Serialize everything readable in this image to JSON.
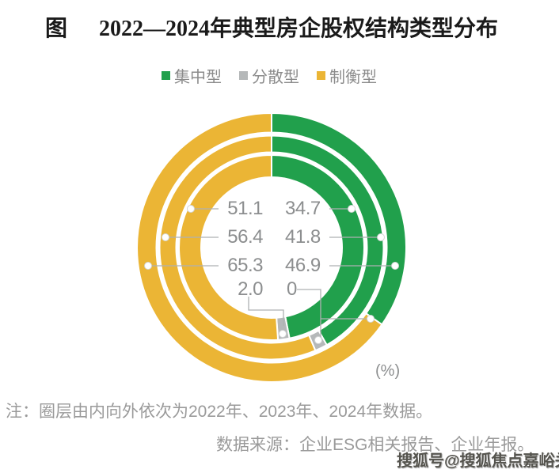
{
  "header": {
    "title_prefix": "图",
    "title": "2022—2024年典型房企股权结构类型分布"
  },
  "chart_data": {
    "type": "pie",
    "variant": "concentric-donut-3-rings",
    "unit": "(%)",
    "legend": [
      {
        "key": "green",
        "label": "集中型"
      },
      {
        "key": "gray",
        "label": "分散型"
      },
      {
        "key": "yellow",
        "label": "制衡型"
      }
    ],
    "colors": {
      "green": "#21A04C",
      "gray": "#B5B8B9",
      "yellow": "#EBB535"
    },
    "rings": [
      {
        "year": "2022",
        "position": "inner",
        "green": "46.9",
        "gray": "2.0",
        "yellow": "51.1"
      },
      {
        "year": "2023",
        "position": "middle",
        "green": "41.8",
        "gray": "1.8",
        "yellow": "56.4"
      },
      {
        "year": "2024",
        "position": "outer",
        "green": "34.7",
        "gray": "0",
        "yellow": "65.3"
      }
    ]
  },
  "notes": {
    "note": "注：圈层由内向外依次为2022年、2023年、2024年数据。",
    "source": "数据来源：企业ESG相关报告、企业年报。"
  },
  "watermark": {
    "text": "搜狐号@搜狐焦点嘉峪关站"
  }
}
